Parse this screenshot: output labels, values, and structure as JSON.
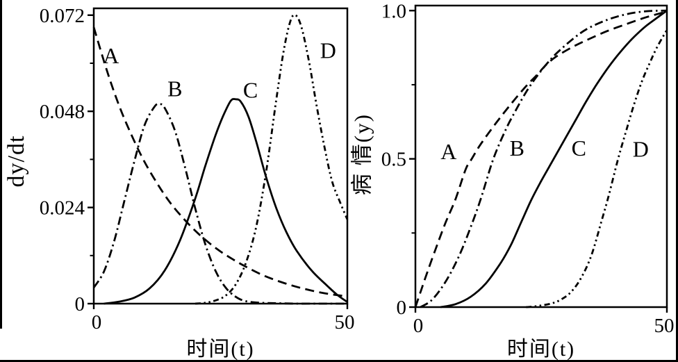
{
  "figure": {
    "background": "#ffffff",
    "ink": "#000000",
    "description_labels": [
      "A",
      "B",
      "C",
      "D"
    ]
  },
  "chart_data": [
    {
      "id": "rate",
      "type": "line",
      "title": "",
      "xlabel": "时间(t)",
      "ylabel": "dy/dt",
      "xlim": [
        0,
        50
      ],
      "ylim": [
        0,
        0.0737
      ],
      "grid": false,
      "legend_position": "inline-labels",
      "xticks": [
        {
          "v": 0,
          "label": "0"
        },
        {
          "v": 50,
          "label": "50"
        }
      ],
      "yticks": [
        {
          "v": 0,
          "label": "0"
        },
        {
          "v": 0.024,
          "label": "0.024"
        },
        {
          "v": 0.048,
          "label": "0.048"
        },
        {
          "v": 0.072,
          "label": "0.072"
        }
      ],
      "yminor": [
        0.012,
        0.036,
        0.06
      ],
      "xminor": [],
      "series": [
        {
          "name": "A",
          "style": "dashed",
          "label_at": [
            3.4,
            0.0619
          ],
          "points": [
            [
              0,
              0.069
            ],
            [
              2.5,
              0.0585
            ],
            [
              5,
              0.0494
            ],
            [
              7.5,
              0.0419
            ],
            [
              10,
              0.0354
            ],
            [
              12.5,
              0.03
            ],
            [
              15,
              0.0253
            ],
            [
              17.5,
              0.0215
            ],
            [
              20,
              0.0182
            ],
            [
              22.5,
              0.0154
            ],
            [
              25,
              0.013
            ],
            [
              27.5,
              0.011
            ],
            [
              30,
              0.0092
            ],
            [
              33,
              0.0073
            ],
            [
              36,
              0.0058
            ],
            [
              40,
              0.0042
            ],
            [
              45,
              0.0027
            ],
            [
              50,
              0.0018
            ]
          ]
        },
        {
          "name": "B",
          "style": "dashdot",
          "label_at": [
            16,
            0.0537
          ],
          "points": [
            [
              0,
              0.004
            ],
            [
              2,
              0.008
            ],
            [
              4,
              0.0155
            ],
            [
              6,
              0.0255
            ],
            [
              8,
              0.0355
            ],
            [
              10,
              0.0445
            ],
            [
              12,
              0.0492
            ],
            [
              13,
              0.0498
            ],
            [
              14,
              0.0488
            ],
            [
              16,
              0.0432
            ],
            [
              18,
              0.034
            ],
            [
              20,
              0.0238
            ],
            [
              22,
              0.0148
            ],
            [
              24,
              0.0082
            ],
            [
              26,
              0.004
            ],
            [
              28,
              0.0017
            ],
            [
              30,
              0.0006
            ],
            [
              33,
              0.0002
            ],
            [
              36,
              0.0001
            ],
            [
              40,
              0
            ],
            [
              45,
              0
            ],
            [
              50,
              0
            ]
          ]
        },
        {
          "name": "C",
          "style": "solid",
          "label_at": [
            30.9,
            0.0533
          ],
          "points": [
            [
              2,
              0
            ],
            [
              5,
              0.0005
            ],
            [
              8,
              0.0015
            ],
            [
              11,
              0.0038
            ],
            [
              14,
              0.0083
            ],
            [
              17,
              0.0158
            ],
            [
              20,
              0.0262
            ],
            [
              22,
              0.0344
            ],
            [
              24,
              0.042
            ],
            [
              25.5,
              0.0468
            ],
            [
              27,
              0.0506
            ],
            [
              28,
              0.051
            ],
            [
              29,
              0.0504
            ],
            [
              30.5,
              0.0467
            ],
            [
              32,
              0.0406
            ],
            [
              34,
              0.0315
            ],
            [
              36,
              0.0238
            ],
            [
              38,
              0.0178
            ],
            [
              40,
              0.0132
            ],
            [
              43,
              0.0082
            ],
            [
              46,
              0.0045
            ],
            [
              48,
              0.0022
            ],
            [
              50,
              0.0004
            ]
          ]
        },
        {
          "name": "D",
          "style": "dashdotdot",
          "label_at": [
            46.2,
            0.0632
          ],
          "points": [
            [
              20,
              0
            ],
            [
              22,
              0.0002
            ],
            [
              24,
              0.0008
            ],
            [
              26,
              0.002
            ],
            [
              28,
              0.0048
            ],
            [
              30,
              0.0102
            ],
            [
              32,
              0.019
            ],
            [
              34,
              0.033
            ],
            [
              36,
              0.051
            ],
            [
              37.5,
              0.0635
            ],
            [
              38.8,
              0.0706
            ],
            [
              39.8,
              0.072
            ],
            [
              41,
              0.0688
            ],
            [
              42.5,
              0.06
            ],
            [
              44,
              0.049
            ],
            [
              45.5,
              0.039
            ],
            [
              47,
              0.0305
            ],
            [
              48.5,
              0.0255
            ],
            [
              50,
              0.021
            ]
          ]
        }
      ]
    },
    {
      "id": "severity",
      "type": "line",
      "title": "",
      "xlabel": "时间(t)",
      "ylabel": "病 情(y)",
      "xlim": [
        0,
        50
      ],
      "ylim": [
        0,
        1.017
      ],
      "grid": false,
      "legend_position": "inline-labels",
      "xticks": [
        {
          "v": 0,
          "label": "0"
        },
        {
          "v": 50,
          "label": "50"
        }
      ],
      "yticks": [
        {
          "v": 0,
          "label": "0"
        },
        {
          "v": 0.5,
          "label": "0.5"
        },
        {
          "v": 1.0,
          "label": "1.0"
        }
      ],
      "yminor": [
        0.25,
        0.75
      ],
      "xminor": [],
      "series": [
        {
          "name": "A",
          "style": "dashed",
          "label_at": [
            6.6,
            0.525
          ],
          "points": [
            [
              0,
              0
            ],
            [
              1,
              0.05
            ],
            [
              2,
              0.1
            ],
            [
              4,
              0.195
            ],
            [
              6,
              0.285
            ],
            [
              8,
              0.365
            ],
            [
              10,
              0.465
            ],
            [
              11.2,
              0.5
            ],
            [
              13,
              0.55
            ],
            [
              16,
              0.62
            ],
            [
              19,
              0.685
            ],
            [
              22,
              0.745
            ],
            [
              24,
              0.78
            ],
            [
              26,
              0.817
            ],
            [
              28,
              0.845
            ],
            [
              31,
              0.875
            ],
            [
              34,
              0.9
            ],
            [
              38,
              0.93
            ],
            [
              42,
              0.955
            ],
            [
              46,
              0.978
            ],
            [
              50,
              0.997
            ]
          ]
        },
        {
          "name": "B",
          "style": "dashdot",
          "label_at": [
            20.2,
            0.537
          ],
          "points": [
            [
              1,
              0
            ],
            [
              3,
              0.02
            ],
            [
              5,
              0.06
            ],
            [
              7,
              0.115
            ],
            [
              9,
              0.185
            ],
            [
              11,
              0.27
            ],
            [
              13,
              0.365
            ],
            [
              15.5,
              0.5
            ],
            [
              18,
              0.6
            ],
            [
              20,
              0.665
            ],
            [
              22,
              0.725
            ],
            [
              24,
              0.775
            ],
            [
              26,
              0.818
            ],
            [
              28,
              0.855
            ],
            [
              31,
              0.9
            ],
            [
              34,
              0.937
            ],
            [
              38,
              0.968
            ],
            [
              42,
              0.988
            ],
            [
              46,
              0.998
            ],
            [
              50,
              1.0
            ]
          ]
        },
        {
          "name": "C",
          "style": "solid",
          "label_at": [
            32.5,
            0.537
          ],
          "points": [
            [
              5,
              0
            ],
            [
              8,
              0.01
            ],
            [
              11,
              0.035
            ],
            [
              14,
              0.08
            ],
            [
              17,
              0.15
            ],
            [
              19,
              0.21
            ],
            [
              21,
              0.285
            ],
            [
              23,
              0.36
            ],
            [
              25,
              0.425
            ],
            [
              27.5,
              0.5
            ],
            [
              30,
              0.575
            ],
            [
              32,
              0.635
            ],
            [
              34,
              0.695
            ],
            [
              36,
              0.75
            ],
            [
              38,
              0.8
            ],
            [
              40,
              0.845
            ],
            [
              42,
              0.885
            ],
            [
              44,
              0.92
            ],
            [
              46,
              0.95
            ],
            [
              48,
              0.975
            ],
            [
              50,
              1.0
            ]
          ]
        },
        {
          "name": "D",
          "style": "dashdotdot",
          "label_at": [
            44.8,
            0.533
          ],
          "points": [
            [
              22,
              0
            ],
            [
              24,
              0.003
            ],
            [
              27,
              0.012
            ],
            [
              29,
              0.026
            ],
            [
              31,
              0.052
            ],
            [
              33,
              0.1
            ],
            [
              35,
              0.175
            ],
            [
              37,
              0.29
            ],
            [
              38.5,
              0.38
            ],
            [
              40.3,
              0.5
            ],
            [
              42,
              0.6
            ],
            [
              43.5,
              0.685
            ],
            [
              45,
              0.76
            ],
            [
              46.5,
              0.82
            ],
            [
              48,
              0.875
            ],
            [
              50,
              0.935
            ]
          ]
        }
      ]
    }
  ]
}
